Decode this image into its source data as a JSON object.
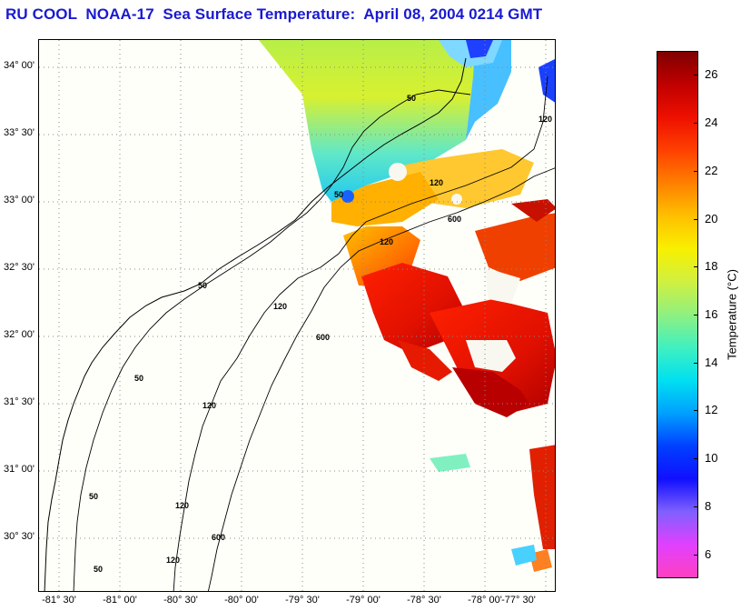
{
  "title": "RU COOL  NOAA-17  Sea Surface Temperature:  April 08, 2004 0214 GMT",
  "map": {
    "lat_labels": [
      "34° 00'",
      "33° 30'",
      "33° 00'",
      "32° 30'",
      "32° 00'",
      "31° 30'",
      "31° 00'",
      "30° 30'"
    ],
    "lon_labels": [
      "-81° 30'",
      "-81° 00'",
      "-80° 30'",
      "-80° 00'",
      "-79° 30'",
      "-79° 00'",
      "-78° 30'",
      "-78° 00'",
      "-77° 30'"
    ],
    "contour_labels": [
      "50",
      "50",
      "50",
      "50",
      "50",
      "50",
      "120",
      "120",
      "120",
      "120",
      "120",
      "120",
      "120",
      "600",
      "600",
      "600"
    ]
  },
  "colorbar": {
    "label": "Temperature (°C)",
    "tick_labels": [
      "26",
      "24",
      "22",
      "20",
      "18",
      "16",
      "14",
      "12",
      "10",
      "8",
      "6"
    ],
    "min": 5,
    "max": 27,
    "colors": [
      "#ff40c0",
      "#e040ff",
      "#8060ff",
      "#1010ff",
      "#0040ff",
      "#00a0ff",
      "#00e0f0",
      "#40f0c0",
      "#90f080",
      "#d0f040",
      "#f8f000",
      "#ffc000",
      "#ff8000",
      "#ff4000",
      "#ee1000",
      "#c00000",
      "#800000"
    ]
  }
}
